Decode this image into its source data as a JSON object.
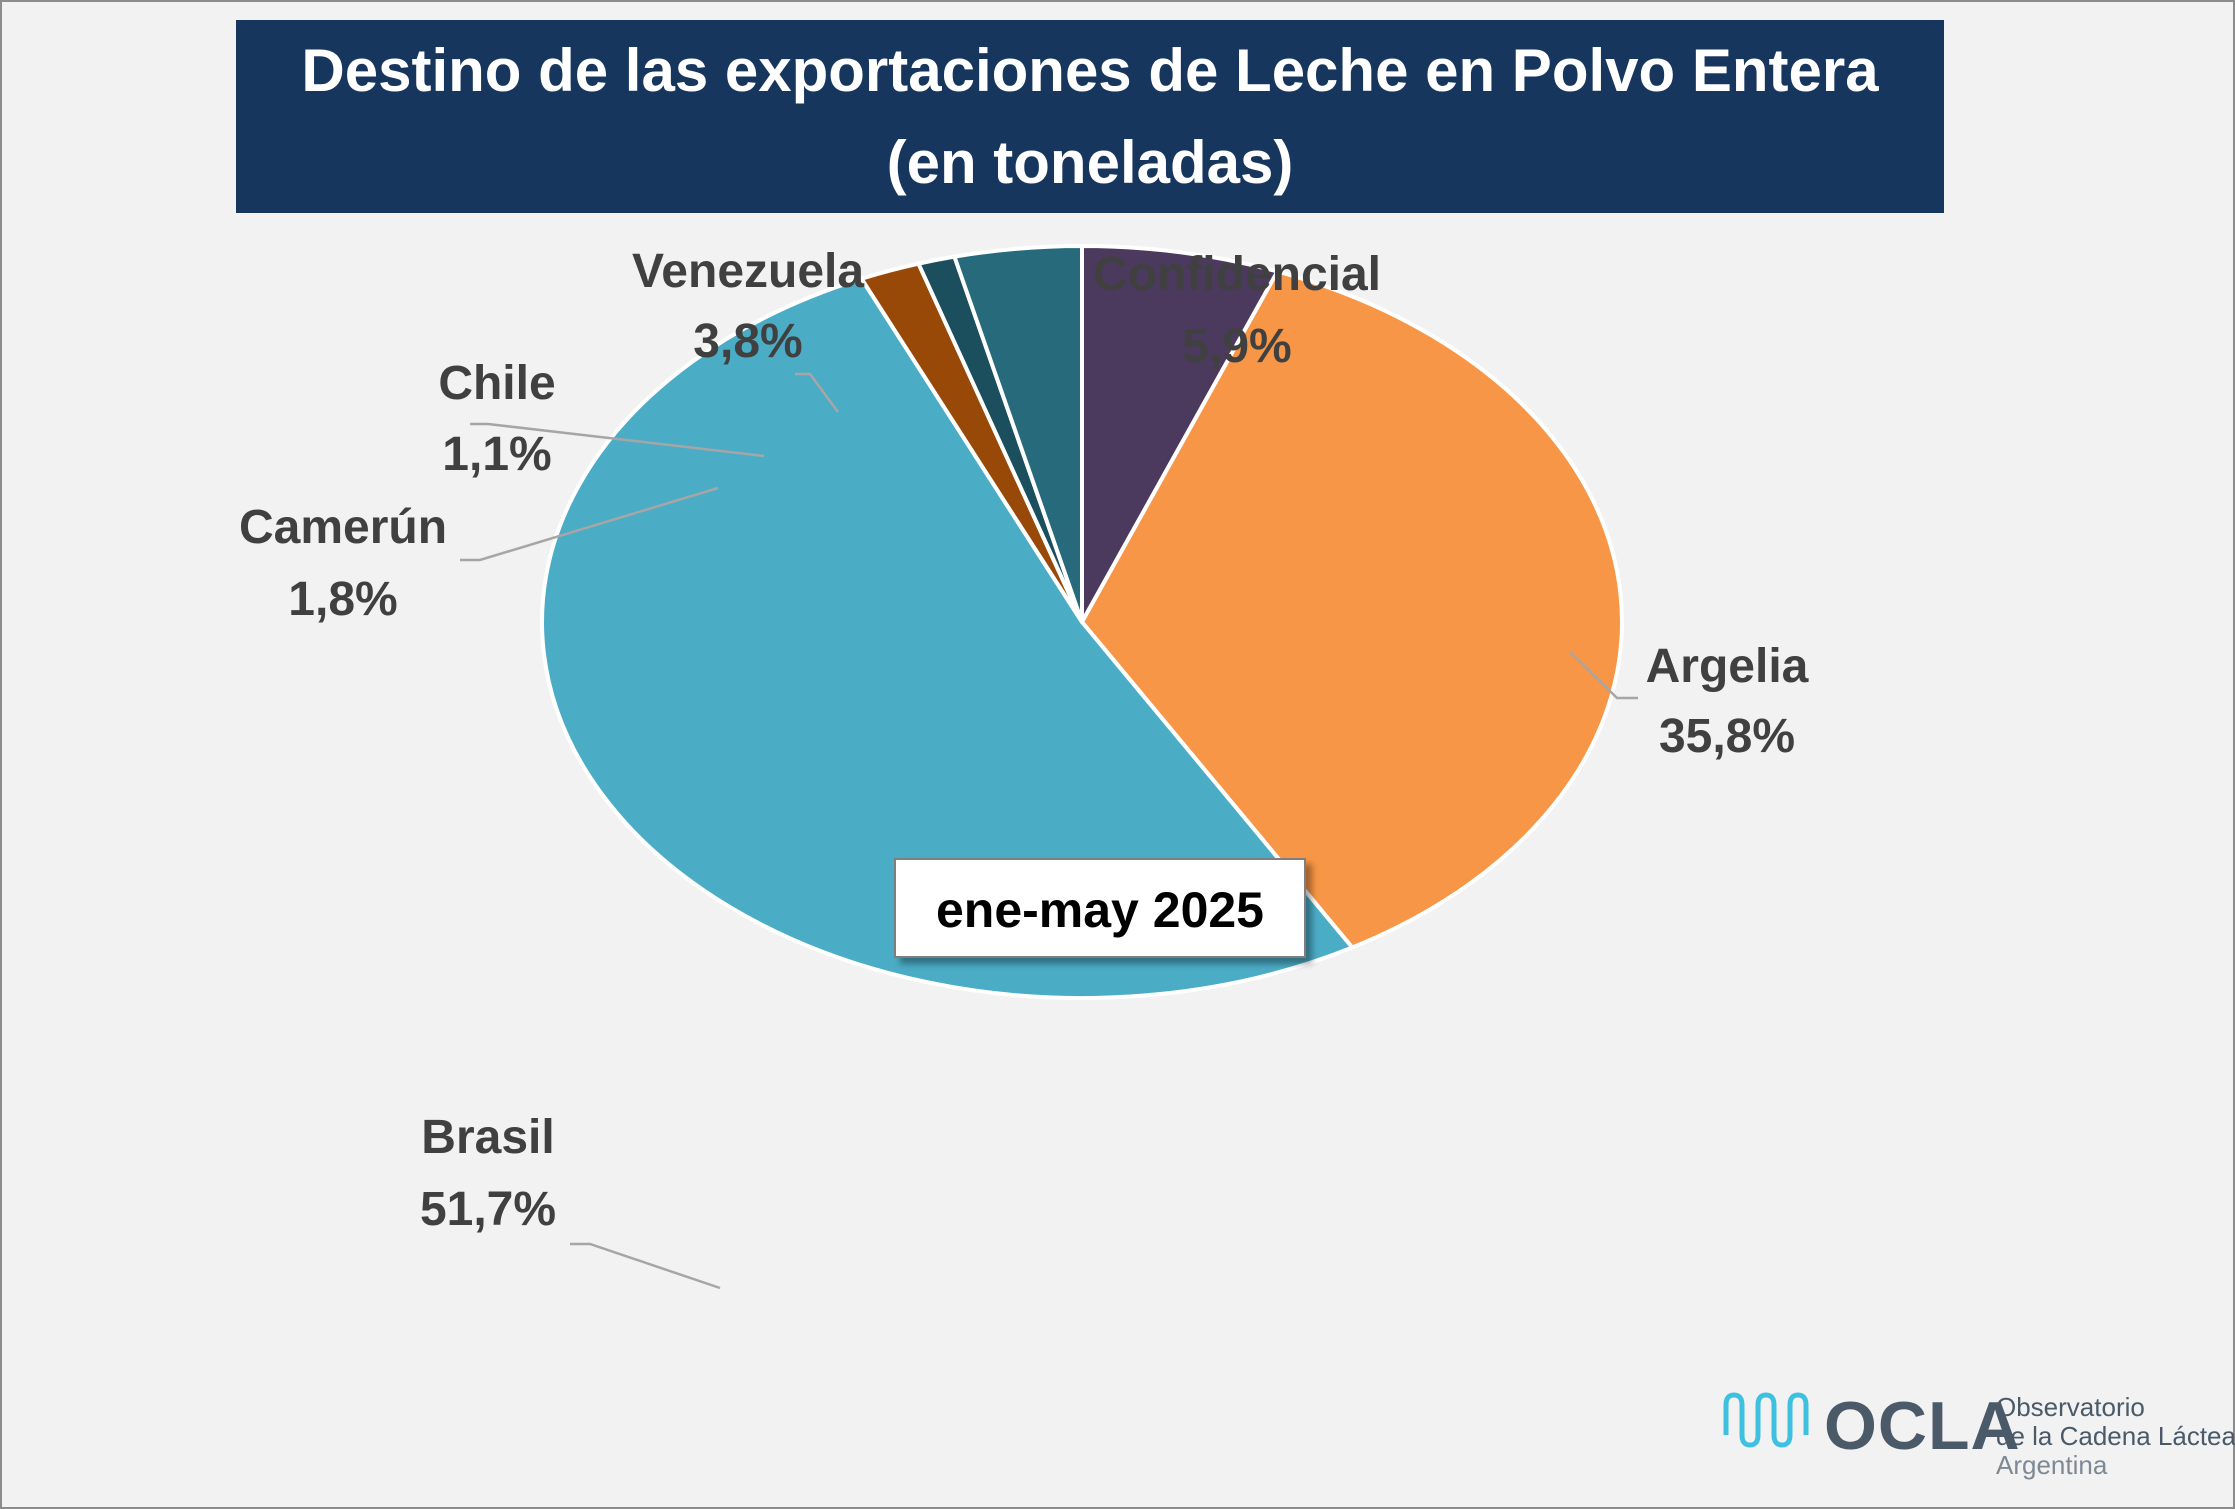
{
  "chart_data": {
    "type": "pie",
    "title": "Destino de las exportaciones de Leche en Polvo Entera",
    "subtitle": "(en toneladas)",
    "annotation": "ene-may 2025",
    "series": [
      {
        "name": "Confidencial",
        "value": 5.9,
        "label": "5,9%",
        "color": "#4b3a5e"
      },
      {
        "name": "Argelia",
        "value": 35.8,
        "label": "35,8%",
        "color": "#f79646"
      },
      {
        "name": "Brasil",
        "value": 51.7,
        "label": "51,7%",
        "color": "#4bacc6"
      },
      {
        "name": "Camerún",
        "value": 1.8,
        "label": "1,8%",
        "color": "#984807"
      },
      {
        "name": "Chile",
        "value": 1.1,
        "label": "1,1%",
        "color": "#1b4f5e"
      },
      {
        "name": "Venezuela",
        "value": 3.8,
        "label": "3,8%",
        "color": "#266a7c"
      }
    ]
  },
  "logo": {
    "name": "OCLA",
    "line1": "Observatorio",
    "line2": "de la Cadena Láctea",
    "line3": "Argentina",
    "color": "#4a5a68",
    "accent": "#3ec1e0"
  }
}
